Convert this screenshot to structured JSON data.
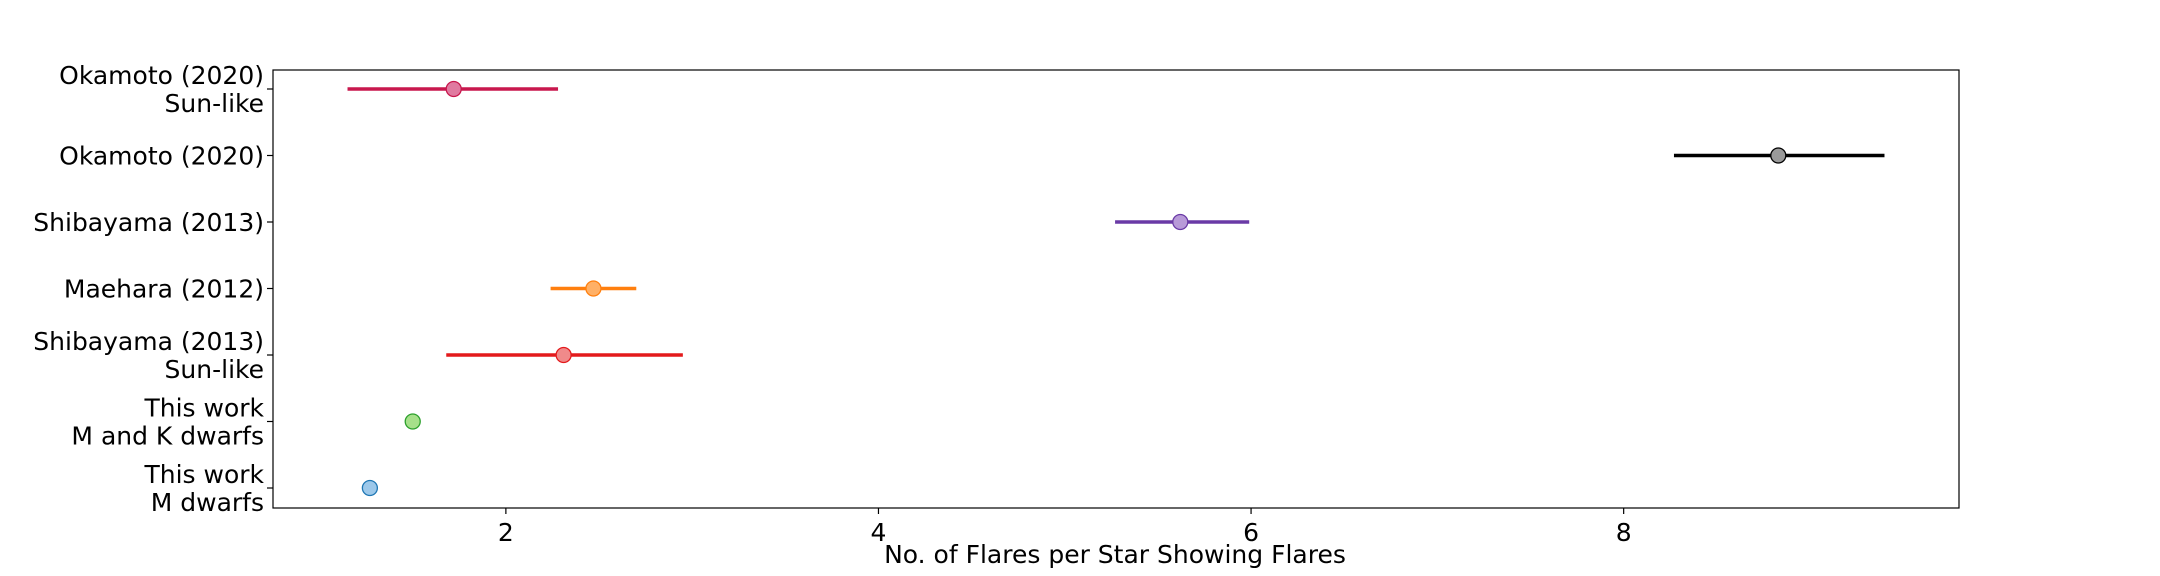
{
  "chart_data": {
    "type": "scatter",
    "xlabel": "No. of Flares per Star Showing Flares",
    "xlim": [
      0.75,
      9.8
    ],
    "xticks": [
      2,
      4,
      6,
      8
    ],
    "grid": false,
    "points": [
      {
        "label": [
          "Okamoto (2020)",
          "Sun-like"
        ],
        "x": 1.72,
        "xerr_low": 1.15,
        "xerr_high": 2.28,
        "color": "#c8174d",
        "marker_fill": "#e07aa0"
      },
      {
        "label": [
          "Okamoto (2020)"
        ],
        "x": 8.83,
        "xerr_low": 8.27,
        "xerr_high": 9.4,
        "color": "#000000",
        "marker_fill": "#9a9a9a"
      },
      {
        "label": [
          "Shibayama (2013)"
        ],
        "x": 5.62,
        "xerr_low": 5.27,
        "xerr_high": 5.99,
        "color": "#6a3aa6",
        "marker_fill": "#b89ad8"
      },
      {
        "label": [
          "Maehara (2012)"
        ],
        "x": 2.47,
        "xerr_low": 2.24,
        "xerr_high": 2.7,
        "color": "#ff7f0e",
        "marker_fill": "#ffb066"
      },
      {
        "label": [
          "Shibayama (2013)",
          "Sun-like"
        ],
        "x": 2.31,
        "xerr_low": 1.68,
        "xerr_high": 2.95,
        "color": "#e31a1c",
        "marker_fill": "#f08a8a"
      },
      {
        "label": [
          "This work",
          "M and K dwarfs"
        ],
        "x": 1.5,
        "xerr_low": 1.47,
        "xerr_high": 1.53,
        "color": "#2ca02c",
        "marker_fill": "#a6e08a"
      },
      {
        "label": [
          "This work",
          "M dwarfs"
        ],
        "x": 1.27,
        "xerr_low": 1.23,
        "xerr_high": 1.31,
        "color": "#1f77b4",
        "marker_fill": "#9cc8ea"
      }
    ]
  }
}
